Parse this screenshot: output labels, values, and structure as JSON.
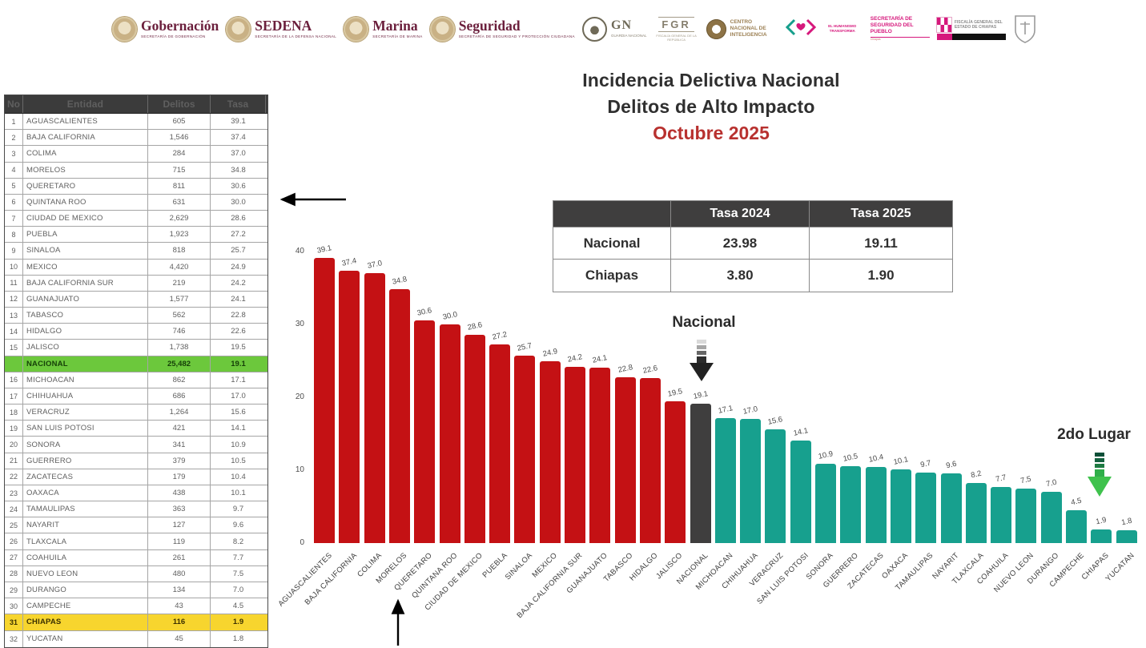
{
  "header": {
    "logos": [
      {
        "style": "seal",
        "text": "Gobernación",
        "subtitle": "Secretaría de Gobernación"
      },
      {
        "style": "seal",
        "text": "SEDENA",
        "subtitle": "Secretaría de la Defensa Nacional"
      },
      {
        "style": "seal",
        "text": "Marina",
        "subtitle": "Secretaría de Marina"
      },
      {
        "style": "seal",
        "text": "Seguridad",
        "subtitle": "Secretaría de Seguridad y Protección Ciudadana"
      },
      {
        "style": "gn",
        "text": "GN",
        "subtitle": "Guardia Nacional"
      },
      {
        "style": "fgr",
        "text": "FGR",
        "subtitle": "Fiscalía General de la República"
      },
      {
        "style": "cni",
        "text": "Centro Nacional de Inteligencia",
        "subtitle": ""
      },
      {
        "style": "pink-hands",
        "text": "El Humanismo Transforma",
        "subtitle": ""
      },
      {
        "style": "pink-text",
        "text": "Secretaría de Seguridad del Pueblo",
        "subtitle": ""
      },
      {
        "style": "fge",
        "text": "Fiscalía General del Estado de Chiapas",
        "subtitle": ""
      },
      {
        "style": "crest",
        "text": "",
        "subtitle": ""
      }
    ]
  },
  "title": {
    "line1": "Incidencia Delictiva Nacional",
    "line2": "Delitos de Alto Impacto",
    "line3": "Octubre 2025"
  },
  "rates_table": {
    "columns": [
      "",
      "Tasa 2024",
      "Tasa 2025"
    ],
    "rows": [
      {
        "label": "Nacional",
        "tasa_2024": "23.98",
        "tasa_2025": "19.11"
      },
      {
        "label": "Chiapas",
        "tasa_2024": "3.80",
        "tasa_2025": "1.90"
      }
    ]
  },
  "state_table": {
    "columns": [
      "No",
      "Entidad",
      "Delitos",
      "Tasa"
    ],
    "rows": [
      {
        "no": "1",
        "entidad": "AGUASCALIENTES",
        "delitos": "605",
        "tasa": "39.1",
        "highlight": null
      },
      {
        "no": "2",
        "entidad": "BAJA CALIFORNIA",
        "delitos": "1,546",
        "tasa": "37.4",
        "highlight": null
      },
      {
        "no": "3",
        "entidad": "COLIMA",
        "delitos": "284",
        "tasa": "37.0",
        "highlight": null
      },
      {
        "no": "4",
        "entidad": "MORELOS",
        "delitos": "715",
        "tasa": "34.8",
        "highlight": null
      },
      {
        "no": "5",
        "entidad": "QUERETARO",
        "delitos": "811",
        "tasa": "30.6",
        "highlight": null
      },
      {
        "no": "6",
        "entidad": "QUINTANA ROO",
        "delitos": "631",
        "tasa": "30.0",
        "highlight": null
      },
      {
        "no": "7",
        "entidad": "CIUDAD DE MEXICO",
        "delitos": "2,629",
        "tasa": "28.6",
        "highlight": null
      },
      {
        "no": "8",
        "entidad": "PUEBLA",
        "delitos": "1,923",
        "tasa": "27.2",
        "highlight": null
      },
      {
        "no": "9",
        "entidad": "SINALOA",
        "delitos": "818",
        "tasa": "25.7",
        "highlight": null
      },
      {
        "no": "10",
        "entidad": "MEXICO",
        "delitos": "4,420",
        "tasa": "24.9",
        "highlight": null
      },
      {
        "no": "11",
        "entidad": "BAJA CALIFORNIA SUR",
        "delitos": "219",
        "tasa": "24.2",
        "highlight": null
      },
      {
        "no": "12",
        "entidad": "GUANAJUATO",
        "delitos": "1,577",
        "tasa": "24.1",
        "highlight": null
      },
      {
        "no": "13",
        "entidad": "TABASCO",
        "delitos": "562",
        "tasa": "22.8",
        "highlight": null
      },
      {
        "no": "14",
        "entidad": "HIDALGO",
        "delitos": "746",
        "tasa": "22.6",
        "highlight": null
      },
      {
        "no": "15",
        "entidad": "JALISCO",
        "delitos": "1,738",
        "tasa": "19.5",
        "highlight": null
      },
      {
        "no": "",
        "entidad": "NACIONAL",
        "delitos": "25,482",
        "tasa": "19.1",
        "highlight": "green"
      },
      {
        "no": "16",
        "entidad": "MICHOACAN",
        "delitos": "862",
        "tasa": "17.1",
        "highlight": null
      },
      {
        "no": "17",
        "entidad": "CHIHUAHUA",
        "delitos": "686",
        "tasa": "17.0",
        "highlight": null
      },
      {
        "no": "18",
        "entidad": "VERACRUZ",
        "delitos": "1,264",
        "tasa": "15.6",
        "highlight": null
      },
      {
        "no": "19",
        "entidad": "SAN LUIS POTOSI",
        "delitos": "421",
        "tasa": "14.1",
        "highlight": null
      },
      {
        "no": "20",
        "entidad": "SONORA",
        "delitos": "341",
        "tasa": "10.9",
        "highlight": null
      },
      {
        "no": "21",
        "entidad": "GUERRERO",
        "delitos": "379",
        "tasa": "10.5",
        "highlight": null
      },
      {
        "no": "22",
        "entidad": "ZACATECAS",
        "delitos": "179",
        "tasa": "10.4",
        "highlight": null
      },
      {
        "no": "23",
        "entidad": "OAXACA",
        "delitos": "438",
        "tasa": "10.1",
        "highlight": null
      },
      {
        "no": "24",
        "entidad": "TAMAULIPAS",
        "delitos": "363",
        "tasa": "9.7",
        "highlight": null
      },
      {
        "no": "25",
        "entidad": "NAYARIT",
        "delitos": "127",
        "tasa": "9.6",
        "highlight": null
      },
      {
        "no": "26",
        "entidad": "TLAXCALA",
        "delitos": "119",
        "tasa": "8.2",
        "highlight": null
      },
      {
        "no": "27",
        "entidad": "COAHUILA",
        "delitos": "261",
        "tasa": "7.7",
        "highlight": null
      },
      {
        "no": "28",
        "entidad": "NUEVO LEON",
        "delitos": "480",
        "tasa": "7.5",
        "highlight": null
      },
      {
        "no": "29",
        "entidad": "DURANGO",
        "delitos": "134",
        "tasa": "7.0",
        "highlight": null
      },
      {
        "no": "30",
        "entidad": "CAMPECHE",
        "delitos": "43",
        "tasa": "4.5",
        "highlight": null
      },
      {
        "no": "31",
        "entidad": "CHIAPAS",
        "delitos": "116",
        "tasa": "1.9",
        "highlight": "yellow"
      },
      {
        "no": "32",
        "entidad": "YUCATAN",
        "delitos": "45",
        "tasa": "1.8",
        "highlight": null
      }
    ]
  },
  "chart_data": {
    "type": "bar",
    "title": "Incidencia Delictiva Nacional - Delitos de Alto Impacto - Octubre 2025",
    "categories": [
      "AGUASCALIENTES",
      "BAJA CALIFORNIA",
      "COLIMA",
      "MORELOS",
      "QUERETARO",
      "QUINTANA ROO",
      "CIUDAD DE MEXICO",
      "PUEBLA",
      "SINALOA",
      "MEXICO",
      "BAJA CALIFORNIA SUR",
      "GUANAJUATO",
      "TABASCO",
      "HIDALGO",
      "JALISCO",
      "NACIONAL",
      "MICHOACAN",
      "CHIHUAHUA",
      "VERACRUZ",
      "SAN LUIS POTOSI",
      "SONORA",
      "GUERRERO",
      "ZACATECAS",
      "OAXACA",
      "TAMAULIPAS",
      "NAYARIT",
      "TLAXCALA",
      "COAHUILA",
      "NUEVO LEON",
      "DURANGO",
      "CAMPECHE",
      "CHIAPAS",
      "YUCATAN"
    ],
    "values": [
      39.1,
      37.4,
      37.0,
      34.8,
      30.6,
      30.0,
      28.6,
      27.2,
      25.7,
      24.9,
      24.2,
      24.1,
      22.8,
      22.6,
      19.5,
      19.1,
      17.1,
      17.0,
      15.6,
      14.1,
      10.9,
      10.5,
      10.4,
      10.1,
      9.7,
      9.6,
      8.2,
      7.7,
      7.5,
      7.0,
      4.5,
      1.9,
      1.8
    ],
    "national_index": 15,
    "colors": {
      "above_national": "#c41114",
      "national": "#3f3e3e",
      "below_national": "#17a08e"
    },
    "xlabel": "",
    "ylabel": "",
    "ylim": [
      0,
      40
    ],
    "yticks": [
      0,
      10,
      20,
      30,
      40
    ],
    "grid": false,
    "legend": null,
    "value_labels": true
  },
  "annotations": {
    "national": "Nacional",
    "second_place": "2do Lugar"
  }
}
